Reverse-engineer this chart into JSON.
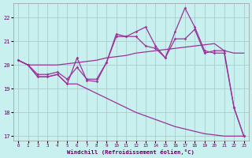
{
  "background_color": "#c8f0ee",
  "grid_color": "#b0d8d8",
  "line_color": "#993399",
  "xlabel": "Windchill (Refroidissement éolien,°C)",
  "xlim": [
    -0.5,
    23.5
  ],
  "ylim": [
    16.8,
    22.6
  ],
  "yticks": [
    17,
    18,
    19,
    20,
    21,
    22
  ],
  "xticks": [
    0,
    1,
    2,
    3,
    4,
    5,
    6,
    7,
    8,
    9,
    10,
    11,
    12,
    13,
    14,
    15,
    16,
    17,
    18,
    19,
    20,
    21,
    22,
    23
  ],
  "line1_y": [
    20.2,
    20.0,
    20.0,
    20.0,
    20.0,
    20.05,
    20.1,
    20.15,
    20.2,
    20.3,
    20.35,
    20.4,
    20.5,
    20.55,
    20.6,
    20.65,
    20.7,
    20.75,
    20.8,
    20.85,
    20.9,
    20.6,
    20.5,
    20.5
  ],
  "line2_y": [
    20.2,
    20.0,
    19.6,
    19.6,
    19.7,
    19.4,
    19.9,
    19.4,
    19.4,
    20.1,
    21.2,
    21.2,
    21.4,
    21.6,
    20.8,
    20.3,
    21.4,
    22.4,
    21.6,
    20.6,
    20.5,
    20.5,
    18.2,
    17.0
  ],
  "line3_y": [
    20.2,
    20.0,
    19.5,
    19.5,
    19.6,
    19.2,
    20.3,
    19.35,
    19.3,
    20.1,
    21.3,
    21.2,
    21.2,
    20.8,
    20.7,
    20.3,
    21.1,
    21.1,
    21.5,
    20.5,
    20.6,
    20.6,
    18.2,
    17.0
  ],
  "line4_y": [
    20.2,
    20.0,
    19.5,
    19.5,
    19.6,
    19.2,
    19.2,
    19.0,
    18.8,
    18.6,
    18.4,
    18.2,
    18.0,
    17.85,
    17.7,
    17.55,
    17.4,
    17.3,
    17.2,
    17.1,
    17.05,
    17.0,
    17.0,
    17.0
  ]
}
